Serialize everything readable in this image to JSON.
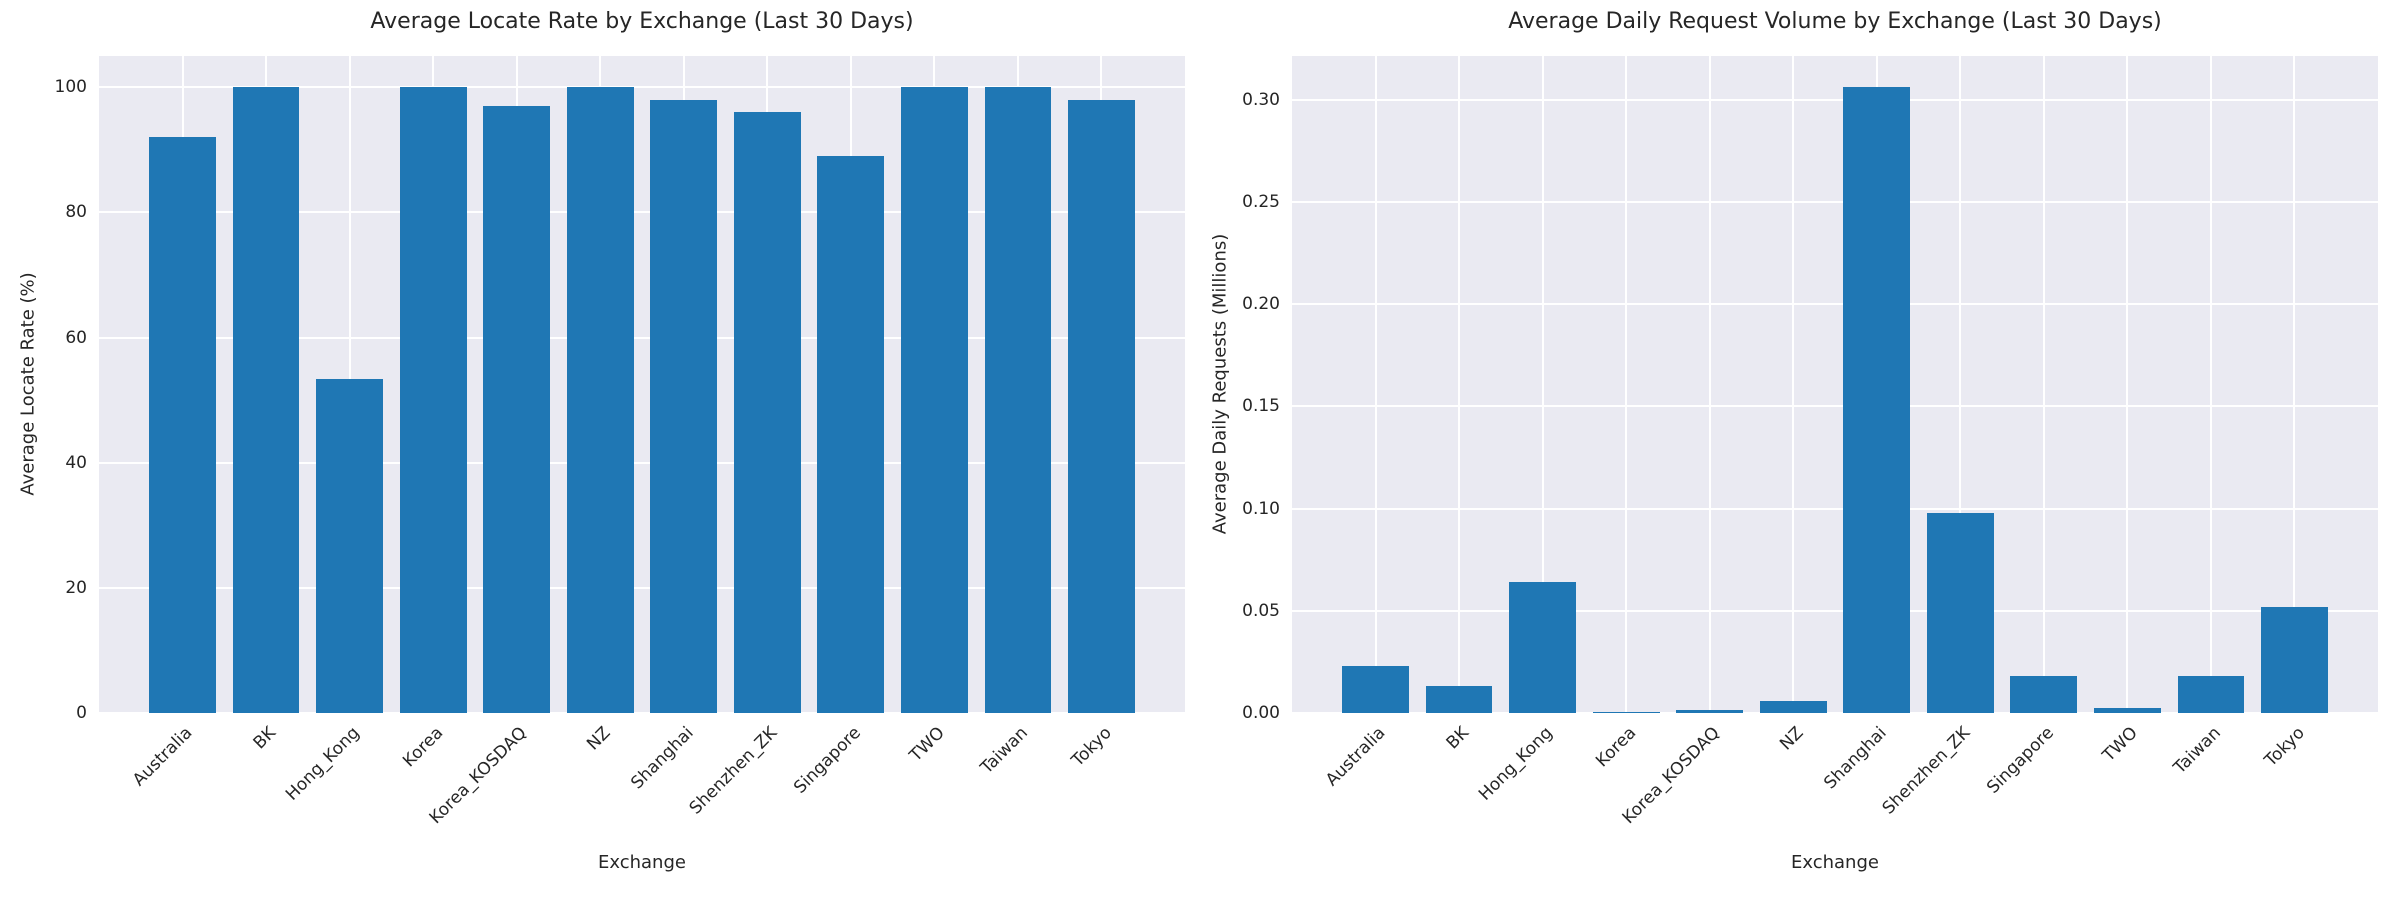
{
  "style": {
    "bar_color": "#1f77b4",
    "axes_background": "#eaeaf2",
    "grid_color": "#ffffff",
    "text_color": "#262626",
    "figure_background": "#ffffff"
  },
  "chart_data": [
    {
      "type": "bar",
      "title": "Average Locate Rate by Exchange (Last 30 Days)",
      "xlabel": "Exchange",
      "ylabel": "Average Locate Rate (%)",
      "categories": [
        "Australia",
        "BK",
        "Hong_Kong",
        "Korea",
        "Korea_KOSDAQ",
        "NZ",
        "Shanghai",
        "Shenzhen_ZK",
        "Singapore",
        "TWO",
        "Taiwan",
        "Tokyo"
      ],
      "values": [
        92,
        100,
        53.3,
        100,
        97,
        100,
        98,
        96,
        89,
        100,
        100,
        98
      ],
      "ylim": [
        0,
        105
      ],
      "yticks": [
        0,
        20,
        40,
        60,
        80,
        100
      ],
      "ytick_labels": [
        "0",
        "20",
        "40",
        "60",
        "80",
        "100"
      ],
      "grid": true,
      "legend": false
    },
    {
      "type": "bar",
      "title": "Average Daily Request Volume by Exchange (Last 30 Days)",
      "xlabel": "Exchange",
      "ylabel": "Average Daily Requests (Millions)",
      "categories": [
        "Australia",
        "BK",
        "Hong_Kong",
        "Korea",
        "Korea_KOSDAQ",
        "NZ",
        "Shanghai",
        "Shenzhen_ZK",
        "Singapore",
        "TWO",
        "Taiwan",
        "Tokyo"
      ],
      "values": [
        0.023,
        0.013,
        0.064,
        0.0005,
        0.0013,
        0.0057,
        0.306,
        0.098,
        0.018,
        0.0025,
        0.018,
        0.052
      ],
      "ylim": [
        0,
        0.3213
      ],
      "yticks": [
        0,
        0.05,
        0.1,
        0.15,
        0.2,
        0.25,
        0.3
      ],
      "ytick_labels": [
        "0.00",
        "0.05",
        "0.10",
        "0.15",
        "0.20",
        "0.25",
        "0.30"
      ],
      "grid": true,
      "legend": false
    }
  ]
}
